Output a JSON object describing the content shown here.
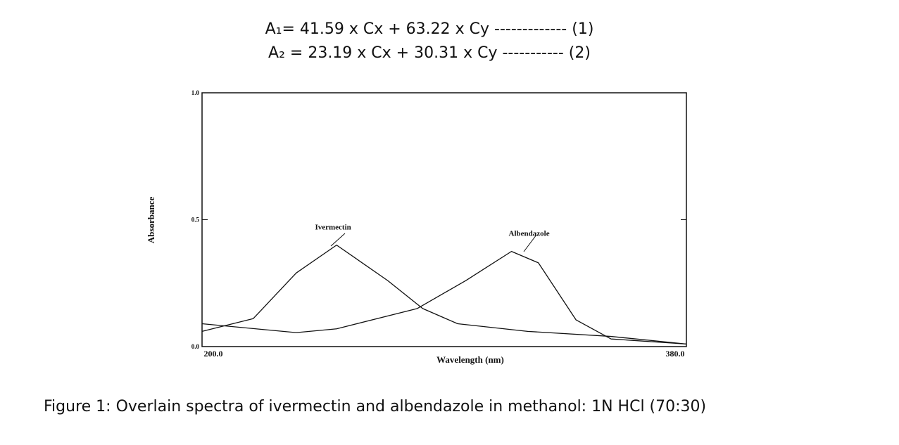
{
  "equations": [
    "A₁= 41.59 x Cx + 63.22 x Cy ------------- (1)",
    "A₂ = 23.19 x Cx + 30.31 x Cy ----------- (2)"
  ],
  "caption": "Figure 1: Overlain spectra of ivermectin and albendazole in methanol: 1N HCl (70:30)",
  "chart_data": {
    "type": "line",
    "x_label": "Wavelength (nm)",
    "y_label": "Absorbance",
    "xlim": [
      200,
      380
    ],
    "ylim": [
      0,
      1
    ],
    "xticks": [
      {
        "value": 200,
        "label": "200.0"
      },
      {
        "value": 380,
        "label": "380.0"
      }
    ],
    "yticks": [
      {
        "value": 0,
        "label": "0.0"
      },
      0.5,
      {
        "value": 1,
        "label": "1.0"
      }
    ],
    "series": [
      {
        "name": "Ivermectin",
        "color": "#111111",
        "x": [
          200,
          219,
          235,
          250,
          269,
          282,
          295,
          321,
          352,
          380
        ],
        "values": [
          0.06,
          0.11,
          0.29,
          0.4,
          0.26,
          0.15,
          0.09,
          0.06,
          0.04,
          0.01
        ]
      },
      {
        "name": "Albendazole",
        "color": "#111111",
        "x": [
          200,
          235,
          250,
          280,
          298,
          315,
          325,
          339,
          352,
          380
        ],
        "values": [
          0.09,
          0.055,
          0.07,
          0.15,
          0.26,
          0.375,
          0.33,
          0.105,
          0.03,
          0.01
        ]
      }
    ]
  }
}
